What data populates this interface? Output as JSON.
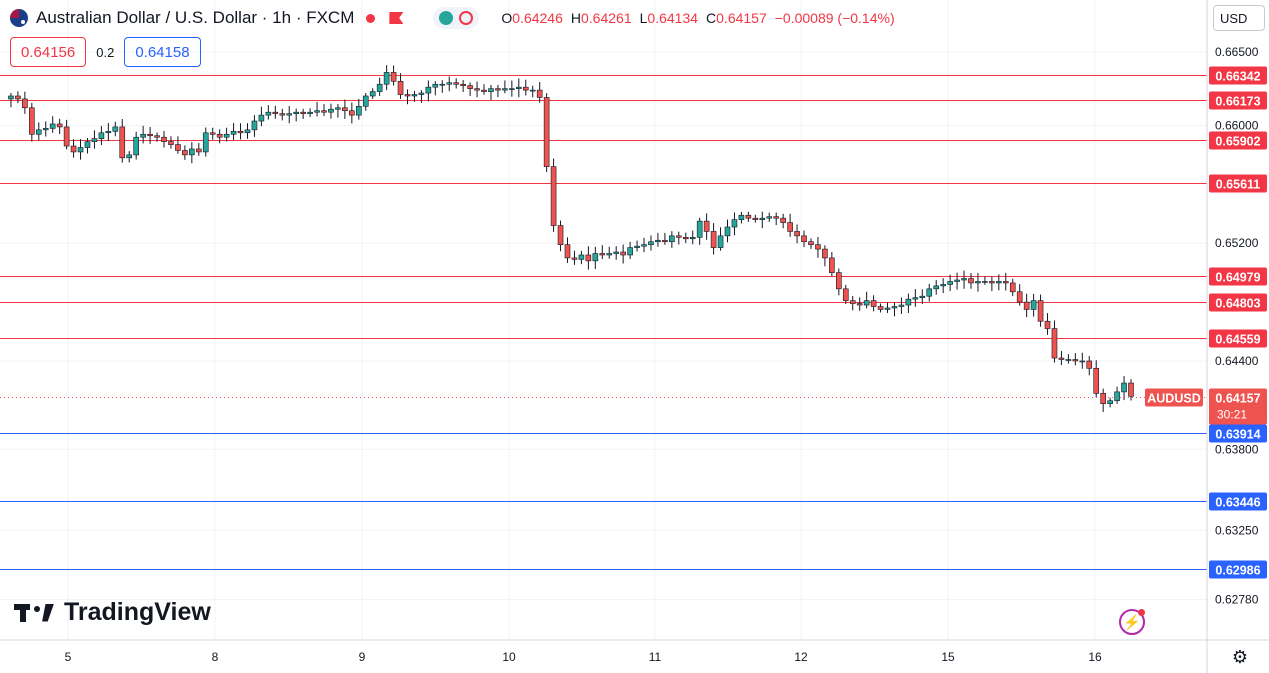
{
  "header": {
    "title": "Australian Dollar / U.S. Dollar · 1h · FXCM",
    "ohlc": [
      {
        "label": "O",
        "value": "0.64246"
      },
      {
        "label": "H",
        "value": "0.64261"
      },
      {
        "label": "L",
        "value": "0.64134"
      },
      {
        "label": "C",
        "value": "0.64157"
      }
    ],
    "change": "−0.00089 (−0.14%)"
  },
  "quote": {
    "sell": "0.64156",
    "spread": "0.2",
    "buy": "0.64158"
  },
  "currency": "USD",
  "logo_text": "TradingView",
  "icons": {
    "flag": "australia-flag-icon",
    "settings": "gear-icon",
    "alert": "flash-icon"
  },
  "colors": {
    "up": "#26a69a",
    "down": "#ef5350",
    "resistance": "#f23645",
    "support": "#2962ff",
    "last_price": "#ef5350"
  },
  "chart_data": {
    "type": "candlestick",
    "symbol": "AUDUSD",
    "timeframe": "1h",
    "x_tick_labels": [
      "5",
      "8",
      "9",
      "10",
      "11",
      "12",
      "15",
      "16"
    ],
    "y_tick_labels": [
      "0.66500",
      "0.66000",
      "0.65200",
      "0.64400",
      "0.63800",
      "0.63250",
      "0.62780"
    ],
    "ylim": [
      0.6262,
      0.6656
    ],
    "last_price": {
      "label": "AUDUSD",
      "value": "0.64157",
      "countdown": "30:21"
    },
    "horizontal_levels": [
      {
        "value": 0.66342,
        "label": "0.66342",
        "kind": "resistance"
      },
      {
        "value": 0.66173,
        "label": "0.66173",
        "kind": "resistance"
      },
      {
        "value": 0.65902,
        "label": "0.65902",
        "kind": "resistance"
      },
      {
        "value": 0.65611,
        "label": "0.65611",
        "kind": "resistance"
      },
      {
        "value": 0.64979,
        "label": "0.64979",
        "kind": "resistance"
      },
      {
        "value": 0.64803,
        "label": "0.64803",
        "kind": "resistance"
      },
      {
        "value": 0.64559,
        "label": "0.64559",
        "kind": "resistance"
      },
      {
        "value": 0.63914,
        "label": "0.63914",
        "kind": "support"
      },
      {
        "value": 0.63446,
        "label": "0.63446",
        "kind": "support"
      },
      {
        "value": 0.62986,
        "label": "0.62986",
        "kind": "support"
      }
    ],
    "close_path": [
      0.6618,
      0.662,
      0.6618,
      0.6612,
      0.6594,
      0.6597,
      0.6598,
      0.6601,
      0.6599,
      0.6586,
      0.6582,
      0.6585,
      0.6589,
      0.6591,
      0.6595,
      0.6596,
      0.6599,
      0.6578,
      0.658,
      0.6592,
      0.6594,
      0.6593,
      0.6592,
      0.6589,
      0.6587,
      0.6583,
      0.658,
      0.6584,
      0.6582,
      0.6595,
      0.6594,
      0.6592,
      0.6594,
      0.6596,
      0.6595,
      0.6597,
      0.6603,
      0.6607,
      0.6609,
      0.6608,
      0.6607,
      0.6608,
      0.6609,
      0.6608,
      0.6609,
      0.661,
      0.6609,
      0.6611,
      0.6612,
      0.661,
      0.6607,
      0.6613,
      0.662,
      0.6623,
      0.6628,
      0.6636,
      0.663,
      0.6621,
      0.662,
      0.6621,
      0.6622,
      0.6626,
      0.6628,
      0.6628,
      0.6629,
      0.6628,
      0.6627,
      0.6625,
      0.6624,
      0.6623,
      0.6625,
      0.6624,
      0.6625,
      0.6625,
      0.6626,
      0.6624,
      0.6624,
      0.6619,
      0.6572,
      0.6532,
      0.6519,
      0.651,
      0.6509,
      0.6512,
      0.6508,
      0.6513,
      0.6512,
      0.6513,
      0.6514,
      0.6512,
      0.6517,
      0.6518,
      0.6519,
      0.6521,
      0.6522,
      0.6521,
      0.6525,
      0.6524,
      0.6523,
      0.6524,
      0.6535,
      0.6528,
      0.6517,
      0.6525,
      0.6531,
      0.6536,
      0.6539,
      0.6537,
      0.6536,
      0.6537,
      0.6538,
      0.6537,
      0.6534,
      0.6528,
      0.6525,
      0.6521,
      0.6519,
      0.6516,
      0.651,
      0.65,
      0.6489,
      0.6481,
      0.6479,
      0.6478,
      0.6481,
      0.6477,
      0.6475,
      0.6476,
      0.6477,
      0.6478,
      0.6482,
      0.6483,
      0.6484,
      0.6489,
      0.6491,
      0.6492,
      0.6494,
      0.6495,
      0.6496,
      0.6493,
      0.6494,
      0.6494,
      0.6493,
      0.6494,
      0.6493,
      0.6487,
      0.648,
      0.6475,
      0.6481,
      0.6467,
      0.6462,
      0.6442,
      0.6441,
      0.6441,
      0.644,
      0.644,
      0.6435,
      0.6418,
      0.6411,
      0.6413,
      0.6419,
      0.6425,
      0.6416
    ]
  }
}
